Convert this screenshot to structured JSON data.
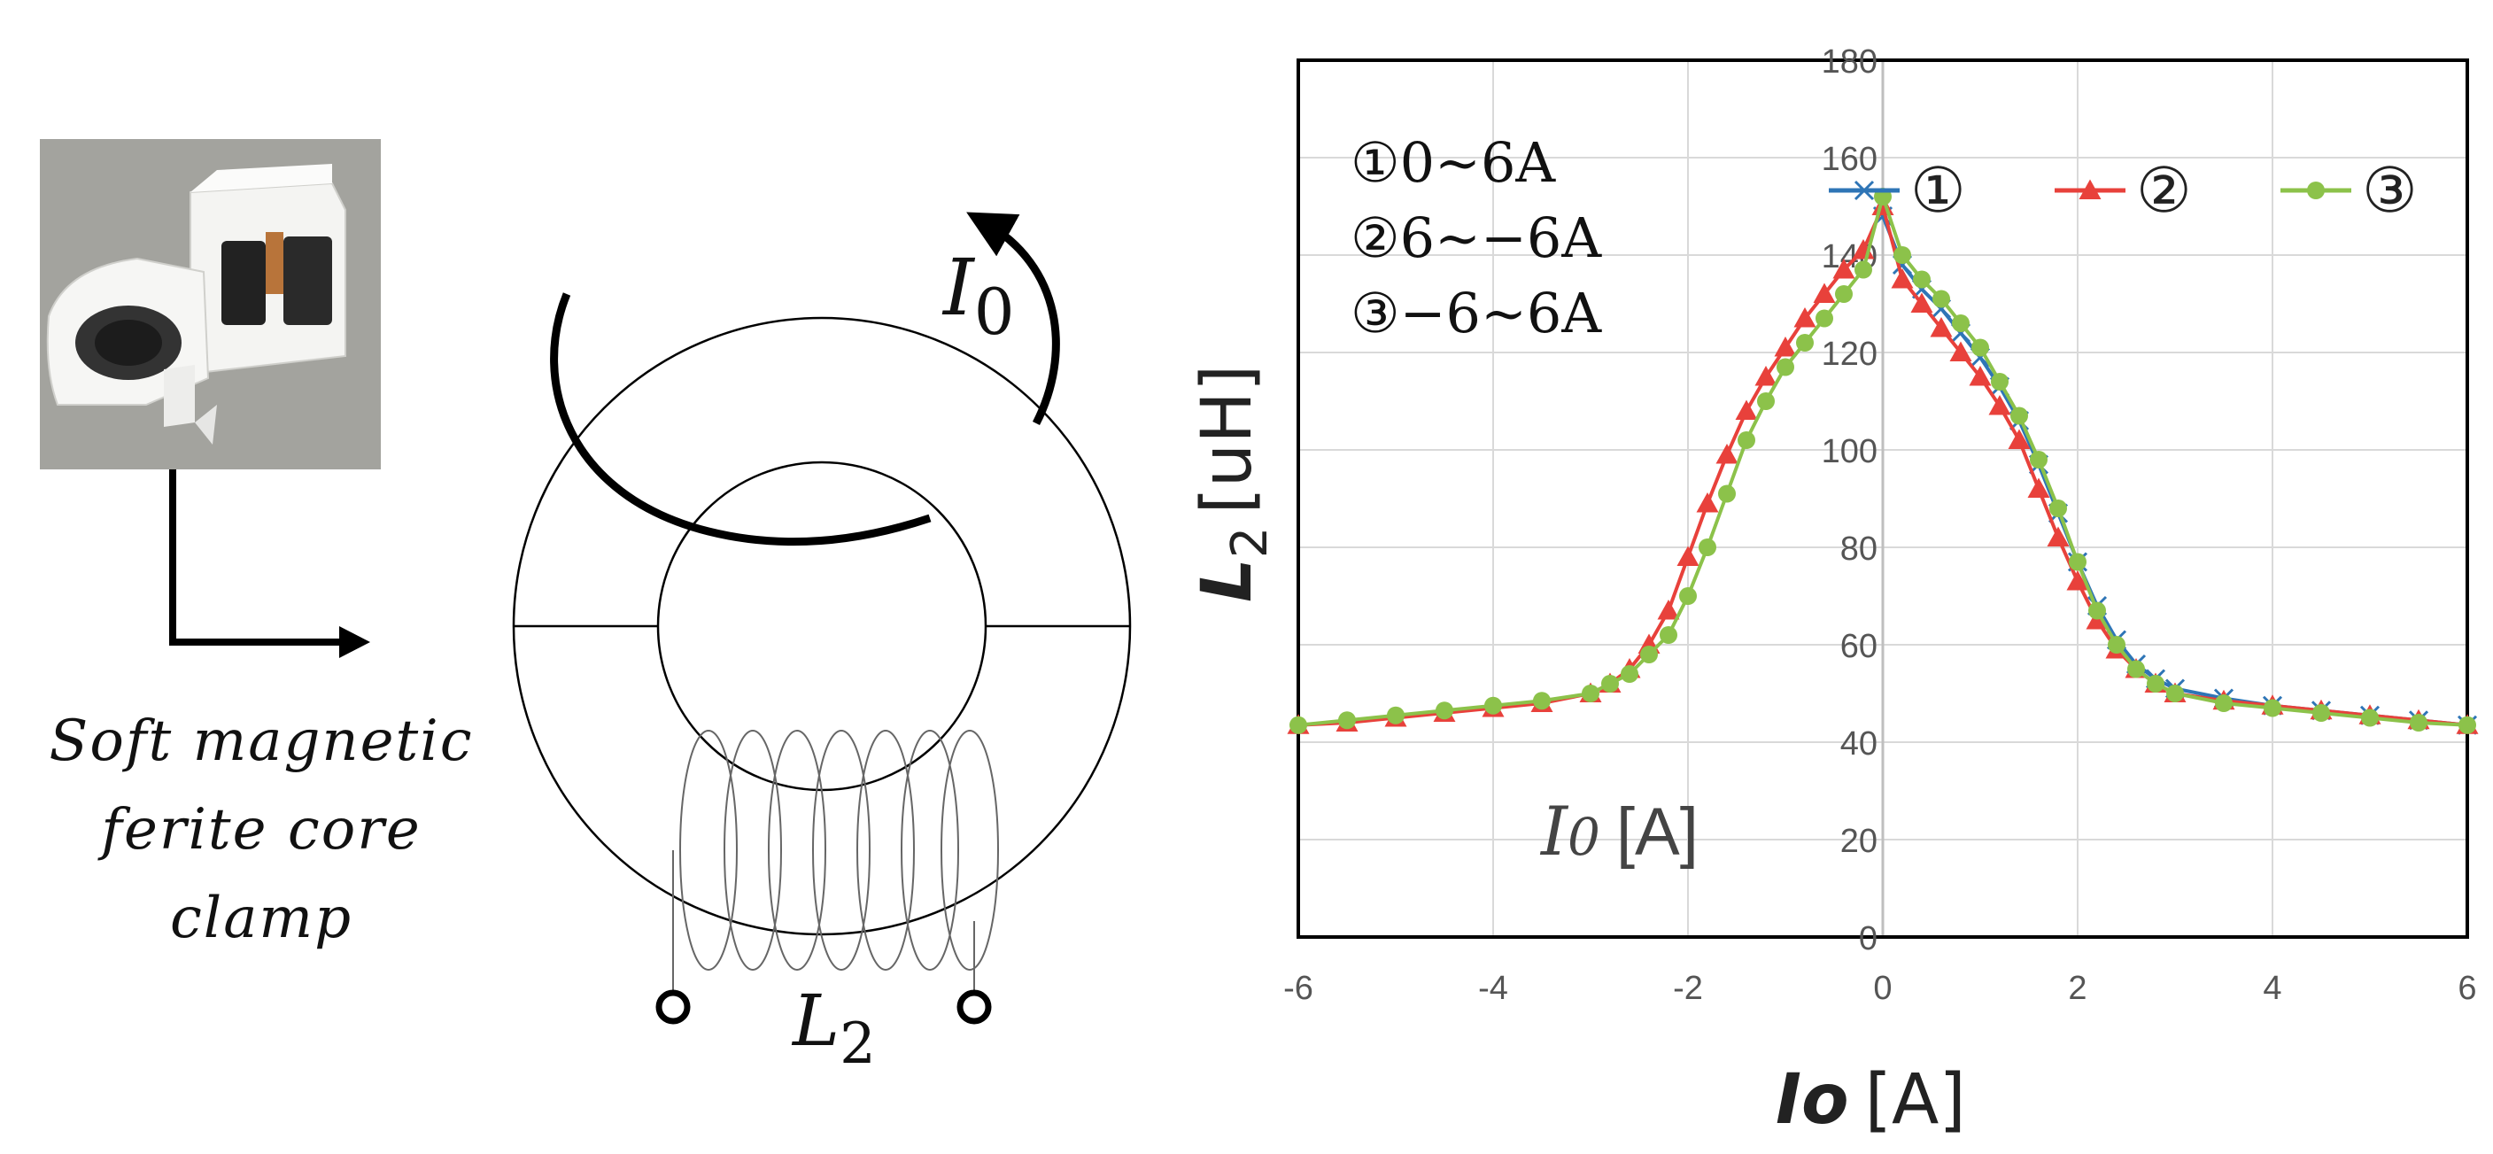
{
  "diagram": {
    "caption_lines": [
      "Soft magnetic",
      "ferite core",
      "clamp"
    ],
    "current_label": {
      "main": "I",
      "sub": "0"
    },
    "coil_label": {
      "main": "L",
      "sub": "2"
    },
    "photo_icon": "ferrite-clamp-photo",
    "arrow_icon": "elbow-arrow-right-icon"
  },
  "chart_data": {
    "type": "line",
    "xlabel": {
      "main": "Io",
      "unit": "[A]"
    },
    "ylabel": {
      "main": "L",
      "sub": "2",
      "unit": "[uH]"
    },
    "inner_label": {
      "main": "I",
      "sub": "0",
      "unit": "[A]"
    },
    "xlim": [
      -6,
      6
    ],
    "ylim": [
      0,
      180
    ],
    "x_ticks": [
      "-6",
      "-4",
      "-2",
      "0",
      "2",
      "4",
      "6"
    ],
    "y_ticks": [
      "0",
      "20",
      "40",
      "60",
      "80",
      "100",
      "120",
      "140",
      "160",
      "180"
    ],
    "grid": true,
    "legend_position": "top-right",
    "sweep_notes": [
      "①0~6A",
      "②6~−6A",
      "③−6~6A"
    ],
    "series": [
      {
        "name": "①",
        "color": "#2E75B6",
        "marker": "x",
        "x": [
          0,
          0.2,
          0.4,
          0.6,
          0.8,
          1.0,
          1.2,
          1.4,
          1.6,
          1.8,
          2.0,
          2.2,
          2.4,
          2.6,
          2.8,
          3.0,
          3.5,
          4.0,
          4.5,
          5.0,
          5.5,
          6.0
        ],
        "y": [
          148,
          138,
          133,
          129,
          124,
          119,
          113,
          106,
          97,
          87,
          77,
          68,
          61,
          56,
          53,
          51,
          49,
          47.5,
          46.5,
          45.5,
          44.5,
          43.5
        ]
      },
      {
        "name": "②",
        "color": "#E8413B",
        "marker": "triangle",
        "x": [
          6.0,
          5.5,
          5.0,
          4.5,
          4.0,
          3.5,
          3.0,
          2.8,
          2.6,
          2.4,
          2.2,
          2.0,
          1.8,
          1.6,
          1.4,
          1.2,
          1.0,
          0.8,
          0.6,
          0.4,
          0.2,
          0,
          -0.2,
          -0.4,
          -0.6,
          -0.8,
          -1.0,
          -1.2,
          -1.4,
          -1.6,
          -1.8,
          -2.0,
          -2.2,
          -2.4,
          -2.6,
          -2.8,
          -3.0,
          -3.5,
          -4.0,
          -4.5,
          -5.0,
          -5.5,
          -6.0
        ],
        "y": [
          43.5,
          44.5,
          45.5,
          46.5,
          47.5,
          48.5,
          50,
          52,
          55,
          59,
          65,
          73,
          82,
          92,
          102,
          109,
          115,
          120,
          125,
          130,
          135,
          150,
          141,
          137,
          132,
          127,
          121,
          115,
          108,
          99,
          89,
          78,
          67,
          60,
          55,
          52,
          50,
          48,
          47,
          46,
          45,
          44,
          43.5
        ]
      },
      {
        "name": "③",
        "color": "#8CC24A",
        "marker": "circle",
        "x": [
          -6.0,
          -5.5,
          -5.0,
          -4.5,
          -4.0,
          -3.5,
          -3.0,
          -2.8,
          -2.6,
          -2.4,
          -2.2,
          -2.0,
          -1.8,
          -1.6,
          -1.4,
          -1.2,
          -1.0,
          -0.8,
          -0.6,
          -0.4,
          -0.2,
          0,
          0.2,
          0.4,
          0.6,
          0.8,
          1.0,
          1.2,
          1.4,
          1.6,
          1.8,
          2.0,
          2.2,
          2.4,
          2.6,
          2.8,
          3.0,
          3.5,
          4.0,
          4.5,
          5.0,
          5.5,
          6.0
        ],
        "y": [
          43.5,
          44.5,
          45.5,
          46.5,
          47.5,
          48.5,
          50,
          52,
          54,
          58,
          62,
          70,
          80,
          91,
          102,
          110,
          117,
          122,
          127,
          132,
          137,
          152,
          140,
          135,
          131,
          126,
          121,
          114,
          107,
          98,
          88,
          77,
          67,
          60,
          55,
          52,
          50,
          48,
          47,
          46,
          45,
          44,
          43.5
        ]
      }
    ]
  }
}
